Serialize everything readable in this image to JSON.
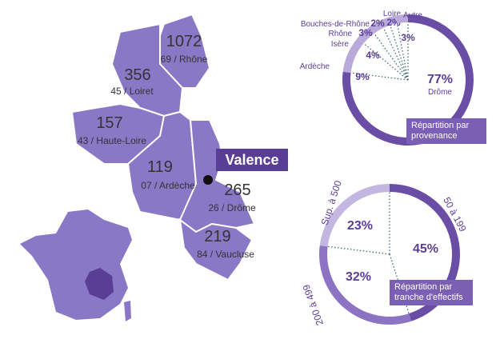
{
  "map": {
    "city": "Valence",
    "regions": [
      {
        "value": 1072,
        "label": "69 / Rhône"
      },
      {
        "value": 356,
        "label": "45 / Loiret"
      },
      {
        "value": 157,
        "label": "43 / Haute-Loire"
      },
      {
        "value": 119,
        "label": "07 / Ardèche"
      },
      {
        "value": 265,
        "label": "26 / Drôme"
      },
      {
        "value": 219,
        "label": "84 / Vaucluse"
      }
    ]
  },
  "chart_data": [
    {
      "type": "pie",
      "caption": "Répartition par provenance",
      "categories": [
        "Drôme",
        "Ardèche",
        "Isère",
        "Rhône",
        "Bouches-de-Rhône",
        "Loire",
        "Autre"
      ],
      "values": [
        77,
        9,
        4,
        3,
        2,
        2,
        3
      ],
      "value_labels": [
        "77%",
        "9%",
        "4%",
        "3%",
        "2%",
        "2%",
        "3%"
      ],
      "colors": [
        "#6a4ea6",
        "#b9aadb",
        "#b9aadb",
        "#b9aadb",
        "#b9aadb",
        "#b9aadb",
        "#b9aadb"
      ]
    },
    {
      "type": "pie",
      "caption": "Répartition par tranche d'effectifs",
      "categories": [
        "50 à 199",
        "200 à 499",
        "Sup. à 500"
      ],
      "values": [
        45,
        32,
        23
      ],
      "value_labels": [
        "45%",
        "32%",
        "23%"
      ],
      "colors": [
        "#6a4ea6",
        "#8c74c2",
        "#c3b7e1"
      ]
    }
  ]
}
